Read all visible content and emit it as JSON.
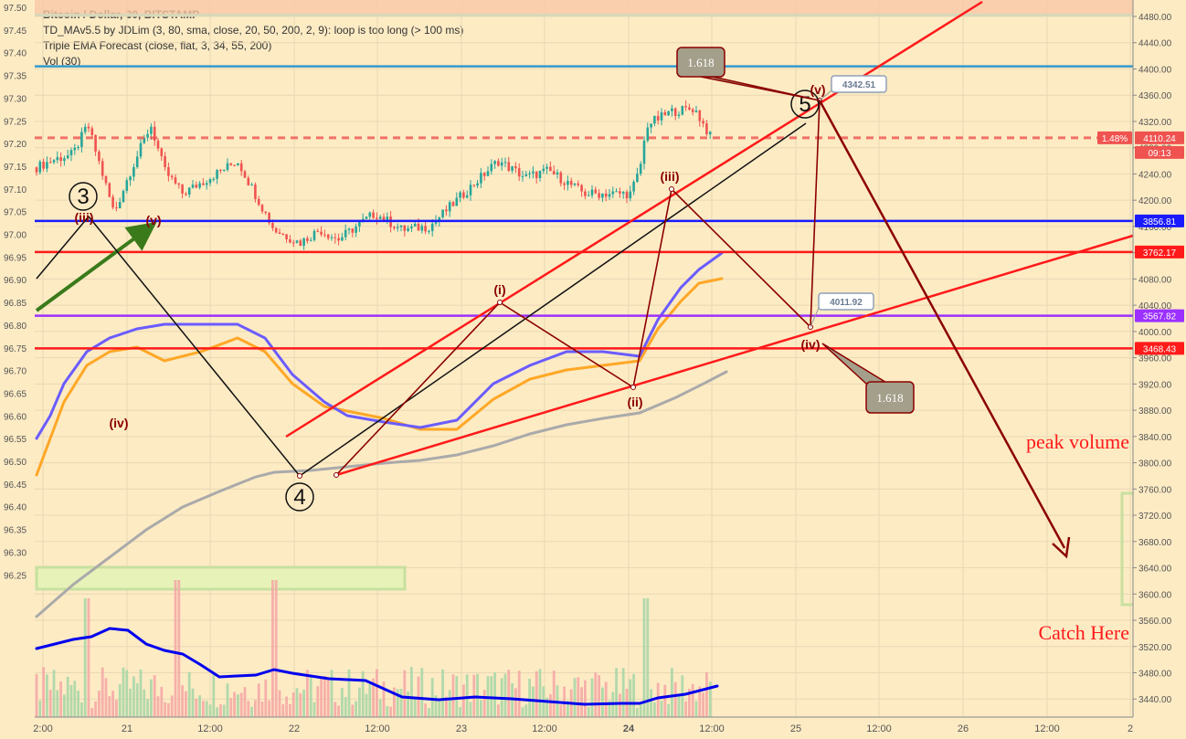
{
  "legend": {
    "symbol": "Bitcoin / Dollar, 30, BITSTAMP",
    "indicator1": "TD_MAv5.5 by JDLim (3, 80, sma, close, 20, 50, 200, 2, 9): loop is too long (> 100 ms)",
    "indicator2": "Triple EMA Forecast (close, flat, 3, 34, 55, 200)",
    "indicator3": "Vol (30)"
  },
  "chart_data": {
    "type": "candlestick",
    "left_axis_ticks": [
      "97.50",
      "97.45",
      "97.40",
      "97.35",
      "97.30",
      "97.25",
      "97.20",
      "97.15",
      "97.10",
      "97.05",
      "97.00",
      "96.95",
      "96.90",
      "96.85",
      "96.80",
      "96.75",
      "96.70",
      "96.65",
      "96.60",
      "96.55",
      "96.50",
      "96.45",
      "96.40",
      "96.35",
      "96.30",
      "96.25"
    ],
    "right_axis_ticks": [
      "4480.00",
      "4440.00",
      "4400.00",
      "4360.00",
      "4320.00",
      "4280.00",
      "4240.00",
      "4200.00",
      "4160.00",
      "4120.00",
      "4080.00",
      "4040.00",
      "4000.00",
      "3960.00",
      "3920.00",
      "3880.00",
      "3840.00",
      "3800.00",
      "3760.00",
      "3720.00",
      "3680.00",
      "3640.00",
      "3600.00",
      "3560.00",
      "3520.00",
      "3480.00",
      "3440.00"
    ],
    "x_ticks": [
      "2:00",
      "21",
      "12:00",
      "22",
      "12:00",
      "23",
      "12:00",
      "24",
      "12:00",
      "25",
      "12:00",
      "26",
      "12:00",
      "2"
    ],
    "price_labels": [
      {
        "text": "4110.24",
        "color": "#ef5350"
      },
      {
        "text": "09:13",
        "color": "#ef5350"
      },
      {
        "text": "3856.81",
        "color": "#1a1aff"
      },
      {
        "text": "3762.17",
        "color": "#ff1a1a"
      },
      {
        "text": "3567.82",
        "color": "#9b30ff"
      },
      {
        "text": "3468.43",
        "color": "#ff1a1a"
      }
    ],
    "percent_tag": "1.48%",
    "horizontal_levels": [
      {
        "price": 4328,
        "color": "#3399cc"
      },
      {
        "price": 4110.24,
        "color": "#ef5350",
        "style": "dashed"
      },
      {
        "price": 3856.81,
        "color": "#1a1aff"
      },
      {
        "price": 3762.17,
        "color": "#ff1a1a"
      },
      {
        "price": 3567.82,
        "color": "#9b30ff"
      },
      {
        "price": 3468.43,
        "color": "#ff1a1a"
      }
    ],
    "wave_labels": [
      "3",
      "4",
      "5",
      "(iii)",
      "(iv)",
      "(v)",
      "(i)",
      "(ii)",
      "(iii)",
      "(iv)",
      "(v)"
    ],
    "callouts": [
      {
        "text": "1.618"
      },
      {
        "text": "1.618"
      },
      {
        "text": "4342.51"
      },
      {
        "text": "4011.92"
      }
    ],
    "annotations": [
      "peak volume",
      "Catch Here"
    ],
    "colors": {
      "up": "#26a69a",
      "down": "#ef5350",
      "ma_blue": "#6a5cff",
      "ma_orange": "#ffa726",
      "ma_gray": "#aaaaaa",
      "vol_ma": "#0000ee",
      "wave": "#8b0000",
      "channel": "#ff1a1a"
    }
  }
}
